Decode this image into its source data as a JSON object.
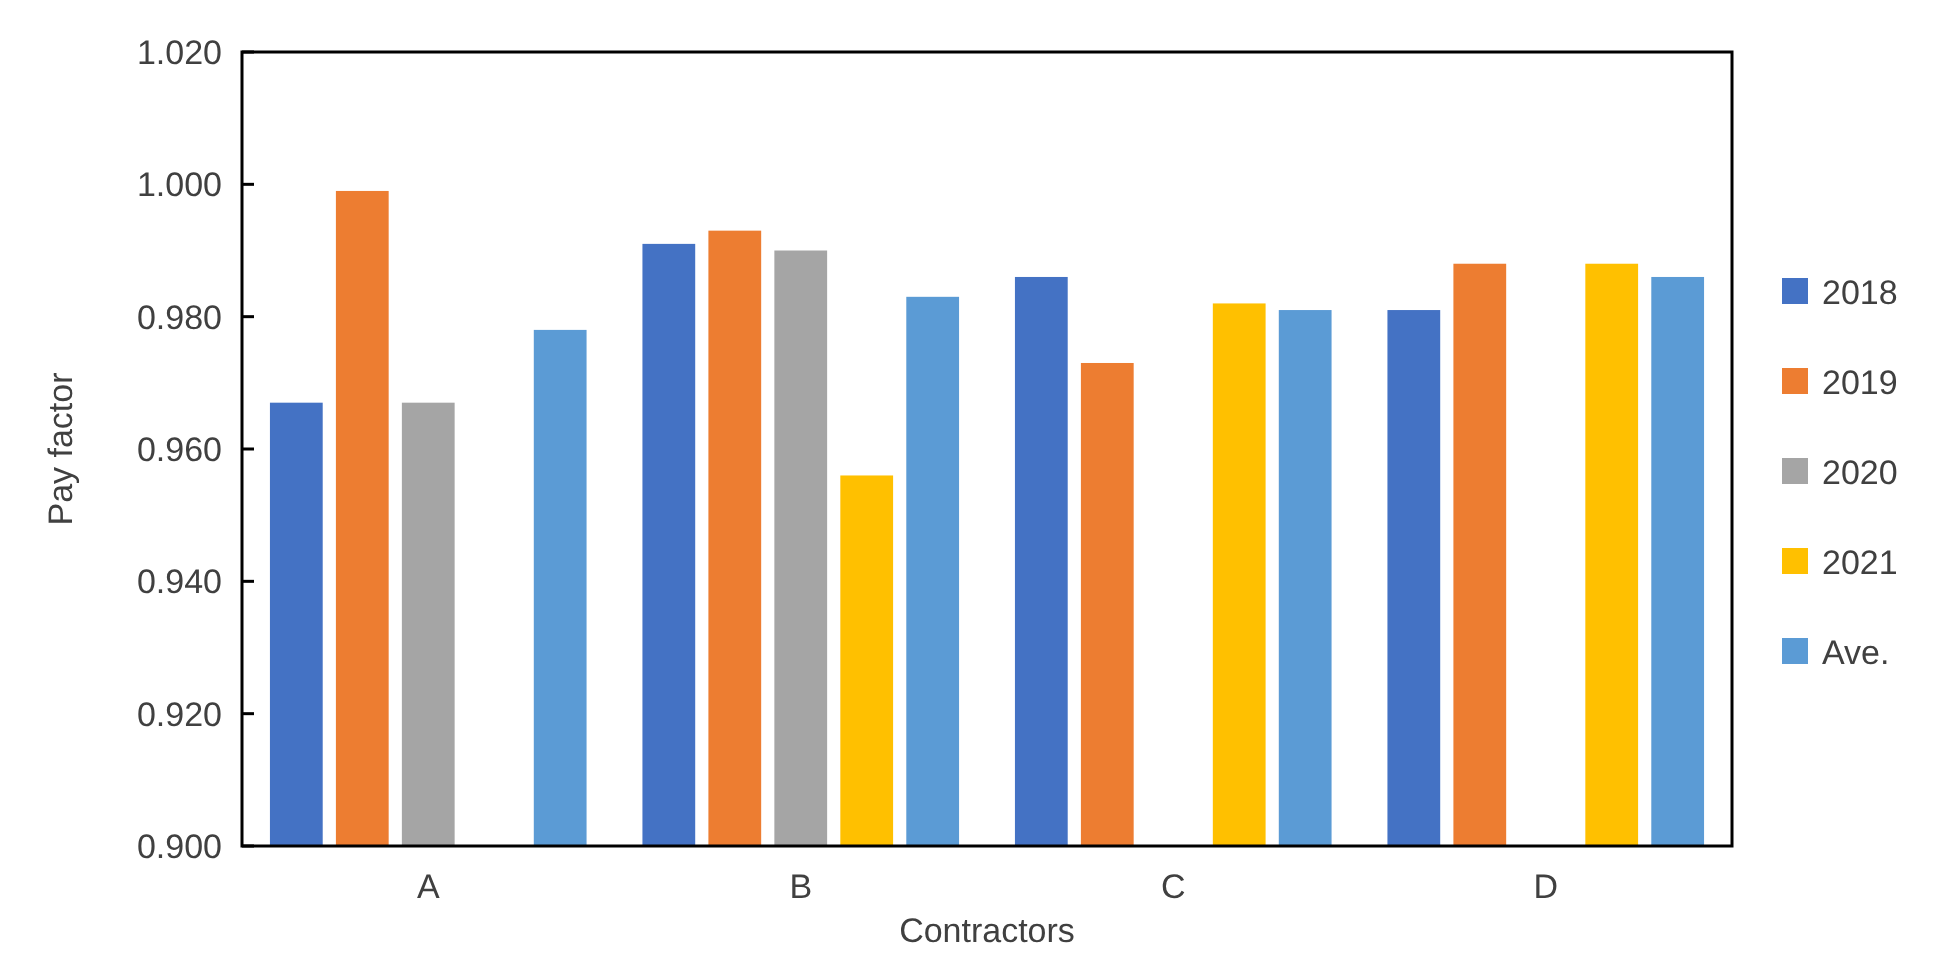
{
  "chart_data": {
    "type": "bar",
    "xlabel": "Contractors",
    "ylabel": "Pay factor",
    "categories": [
      "A",
      "B",
      "C",
      "D"
    ],
    "series": [
      {
        "name": "2018",
        "color": "#4472c4",
        "values": [
          0.967,
          0.991,
          0.986,
          0.981
        ]
      },
      {
        "name": "2019",
        "color": "#ed7d31",
        "values": [
          0.999,
          0.993,
          0.973,
          0.988
        ]
      },
      {
        "name": "2020",
        "color": "#a5a5a5",
        "values": [
          0.967,
          0.99,
          null,
          null
        ]
      },
      {
        "name": "2021",
        "color": "#ffc000",
        "values": [
          null,
          0.956,
          0.982,
          0.988
        ]
      },
      {
        "name": "Ave.",
        "color": "#5b9bd5",
        "values": [
          0.978,
          0.983,
          0.981,
          0.986
        ]
      }
    ],
    "ylim": [
      0.9,
      1.02
    ],
    "yticks": [
      {
        "value": 0.9,
        "label": "0.900"
      },
      {
        "value": 0.92,
        "label": "0.920"
      },
      {
        "value": 0.94,
        "label": "0.940"
      },
      {
        "value": 0.96,
        "label": "0.960"
      },
      {
        "value": 0.98,
        "label": "0.980"
      },
      {
        "value": 1.0,
        "label": "1.000"
      },
      {
        "value": 1.02,
        "label": "1.020"
      }
    ],
    "grid": false,
    "legend": "right"
  }
}
